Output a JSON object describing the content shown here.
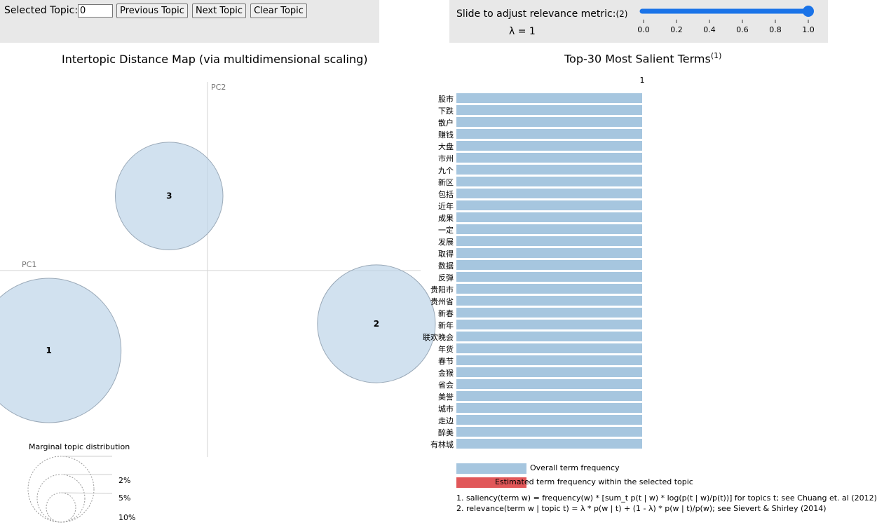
{
  "topic_control": {
    "label": "Selected Topic:",
    "value": "0",
    "prev_label": "Previous Topic",
    "next_label": "Next Topic",
    "clear_label": "Clear Topic"
  },
  "lambda_control": {
    "label": "Slide to adjust relevance metric:",
    "note_marker": "(2)",
    "lambda_text": "λ = 1",
    "value": 1.0,
    "ticks": [
      "0.0",
      "0.2",
      "0.4",
      "0.6",
      "0.8",
      "1.0"
    ],
    "accent": "#1a73e8"
  },
  "mds": {
    "title": "Intertopic Distance Map (via multidimensional scaling)",
    "pc1_label": "PC1",
    "pc2_label": "PC2",
    "topics": [
      {
        "label": "1",
        "pc1": -0.62,
        "pc2": -0.3,
        "share_pct": 45
      },
      {
        "label": "2",
        "pc1": 0.66,
        "pc2": -0.2,
        "share_pct": 30
      },
      {
        "label": "3",
        "pc1": -0.15,
        "pc2": 0.28,
        "share_pct": 25
      }
    ],
    "circle_color": "#b9d1e6",
    "marginal": {
      "title": "Marginal topic distribution",
      "labels": [
        "2%",
        "5%",
        "10%"
      ]
    }
  },
  "chart_data": {
    "type": "bar",
    "title": "Top-30 Most Salient Terms",
    "title_note": "(1)",
    "x_tick": "1",
    "xlim": [
      0,
      1
    ],
    "categories": [
      "股市",
      "下跌",
      "散户",
      "赚钱",
      "大盘",
      "市州",
      "九个",
      "新区",
      "包括",
      "近年",
      "成果",
      "一定",
      "发展",
      "取得",
      "数据",
      "反弹",
      "贵阳市",
      "贵州省",
      "新春",
      "新年",
      "联欢晚会",
      "年货",
      "春节",
      "金猴",
      "省会",
      "美誉",
      "城市",
      "走边",
      "醉美",
      "有林城"
    ],
    "series": [
      {
        "name": "Overall term frequency",
        "color": "#a6c6df",
        "values": [
          1,
          1,
          1,
          1,
          1,
          1,
          1,
          1,
          1,
          1,
          1,
          1,
          1,
          1,
          1,
          1,
          1,
          1,
          1,
          1,
          1,
          1,
          1,
          1,
          1,
          1,
          1,
          1,
          1,
          1
        ]
      },
      {
        "name": "Estimated term frequency within the selected topic",
        "color": "#e15759",
        "values": [
          0,
          0,
          0,
          0,
          0,
          0,
          0,
          0,
          0,
          0,
          0,
          0,
          0,
          0,
          0,
          0,
          0,
          0,
          0,
          0,
          0,
          0,
          0,
          0,
          0,
          0,
          0,
          0,
          0,
          0
        ]
      }
    ]
  },
  "legend": {
    "overall_label": "Overall term frequency",
    "overall_color": "#a6c6df",
    "topic_label": "Estimated term frequency within the selected topic",
    "topic_color": "#e15759"
  },
  "footnotes": {
    "note1": "1. saliency(term w) = frequency(w) * [sum_t p(t | w) * log(p(t | w)/p(t))] for topics t; see Chuang et. al (2012)",
    "note2": "2. relevance(term w | topic t) = λ * p(w | t) + (1 - λ) * p(w | t)/p(w); see Sievert & Shirley (2014)"
  }
}
